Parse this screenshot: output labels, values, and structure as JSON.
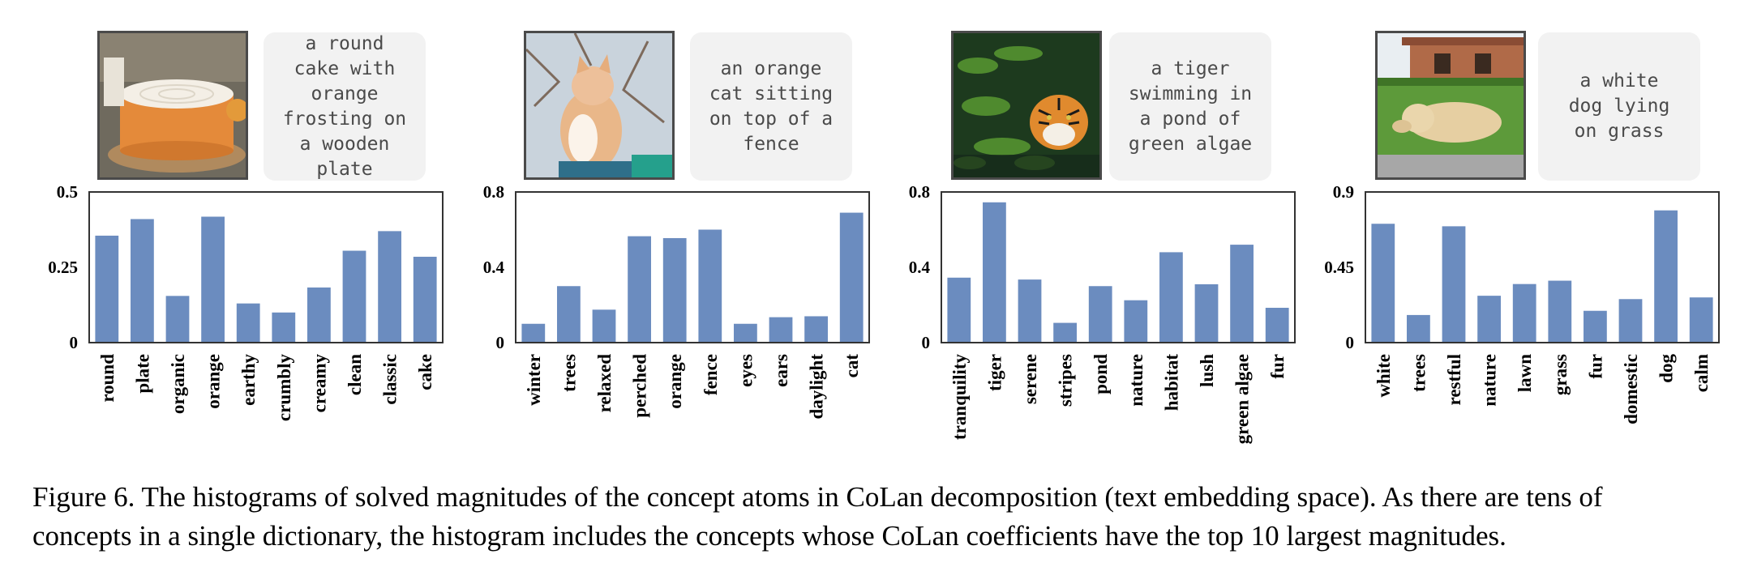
{
  "colors": {
    "bar": "#6b8cbf",
    "axis": "#333333",
    "caption_bg": "#f2f2f2"
  },
  "panels": [
    {
      "image_icon": "cake-photo",
      "image_caption": "a round\ncake with\norange\nfrosting on\na wooden\nplate",
      "chart_data": {
        "type": "bar",
        "categories": [
          "round",
          "plate",
          "organic",
          "orange",
          "earthy",
          "crumbly",
          "creamy",
          "clean",
          "classic",
          "cake"
        ],
        "values": [
          0.355,
          0.41,
          0.155,
          0.418,
          0.13,
          0.1,
          0.183,
          0.305,
          0.37,
          0.285
        ],
        "ylim": [
          0,
          0.5
        ],
        "yticks": [
          0,
          0.25,
          0.5
        ],
        "ytick_labels": [
          "0",
          "0.25",
          "0.5"
        ]
      }
    },
    {
      "image_icon": "cat-photo",
      "image_caption": "an orange\ncat sitting\non top of a\nfence",
      "chart_data": {
        "type": "bar",
        "categories": [
          "winter",
          "trees",
          "relaxed",
          "perched",
          "orange",
          "fence",
          "eyes",
          "ears",
          "daylight",
          "cat"
        ],
        "values": [
          0.1,
          0.3,
          0.175,
          0.565,
          0.555,
          0.6,
          0.1,
          0.135,
          0.14,
          0.69
        ],
        "ylim": [
          0,
          0.8
        ],
        "yticks": [
          0,
          0.4,
          0.8
        ],
        "ytick_labels": [
          "0",
          "0.4",
          "0.8"
        ]
      }
    },
    {
      "image_icon": "tiger-photo",
      "image_caption": "a tiger\nswimming in\na pond of\ngreen algae",
      "chart_data": {
        "type": "bar",
        "categories": [
          "tranquility",
          "tiger",
          "serene",
          "stripes",
          "pond",
          "nature",
          "habitat",
          "lush",
          "green algae",
          "fur"
        ],
        "values": [
          0.345,
          0.745,
          0.335,
          0.105,
          0.3,
          0.225,
          0.48,
          0.31,
          0.52,
          0.185
        ],
        "ylim": [
          0,
          0.8
        ],
        "yticks": [
          0,
          0.4,
          0.8
        ],
        "ytick_labels": [
          "0",
          "0.4",
          "0.8"
        ]
      }
    },
    {
      "image_icon": "dog-photo",
      "image_caption": "a white\ndog lying\non grass",
      "chart_data": {
        "type": "bar",
        "categories": [
          "white",
          "trees",
          "restful",
          "nature",
          "lawn",
          "grass",
          "fur",
          "domestic",
          "dog",
          "calm"
        ],
        "values": [
          0.71,
          0.165,
          0.695,
          0.28,
          0.35,
          0.37,
          0.19,
          0.26,
          0.79,
          0.27
        ],
        "ylim": [
          0,
          0.9
        ],
        "yticks": [
          0,
          0.45,
          0.9
        ],
        "ytick_labels": [
          "0",
          "0.45",
          "0.9"
        ]
      }
    }
  ],
  "caption": {
    "line1": "Figure 6. The histograms of solved magnitudes of the concept atoms in CoLan decomposition (text embedding space). As there are tens of",
    "line2": "concepts in a single dictionary, the histogram includes the concepts whose CoLan coefficients have the top 10 largest magnitudes."
  }
}
